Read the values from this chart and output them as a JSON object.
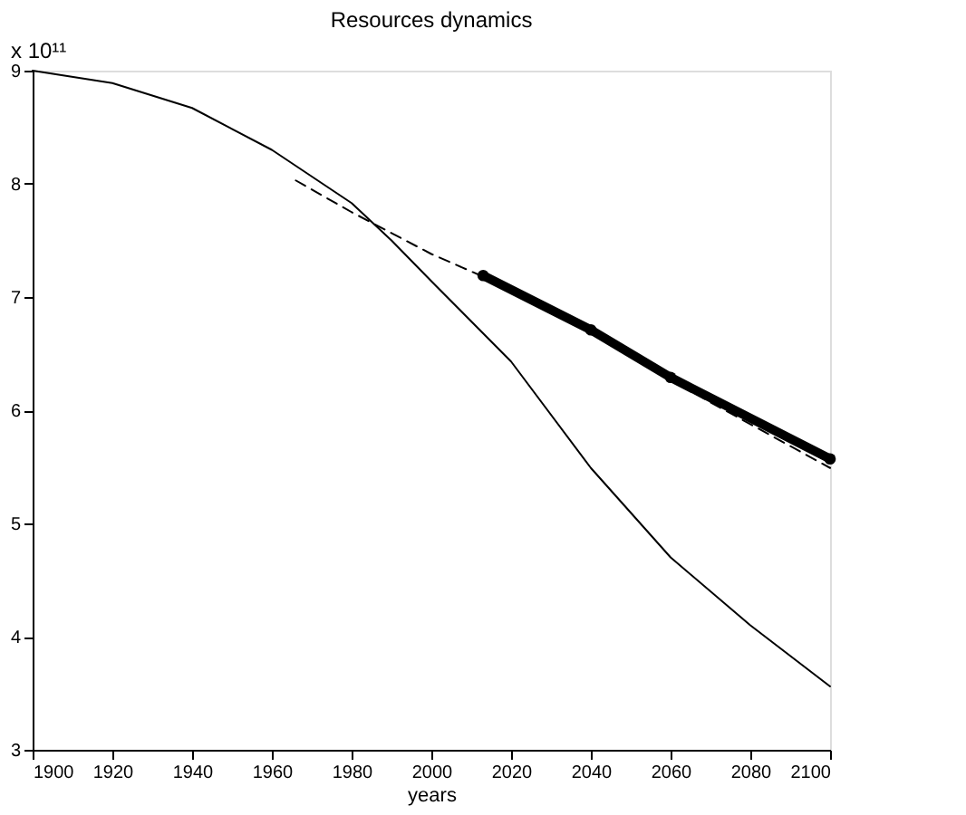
{
  "chart_data": {
    "type": "line",
    "title": "Resources dynamics",
    "xlabel": "years",
    "annotations": [
      "x 10¹¹"
    ],
    "xlim": [
      1900,
      2100
    ],
    "xticks": [
      1900,
      1920,
      1940,
      1960,
      1980,
      2000,
      2020,
      2040,
      2060,
      2080,
      2100
    ],
    "ylim": [
      3,
      9
    ],
    "yticks": [
      3,
      4,
      5,
      6,
      7,
      8,
      9
    ],
    "grid": false,
    "marker": "none",
    "series": [
      {
        "color": "#000000",
        "line_style": "solid",
        "x": [
          1900,
          1920,
          1940,
          1960,
          1980,
          1990,
          2000,
          2020,
          2040,
          2060,
          2080,
          2100
        ],
        "values": [
          9.0,
          8.89,
          8.67,
          8.3,
          7.83,
          7.5,
          7.14,
          6.43,
          5.49,
          4.7,
          4.1,
          3.56
        ]
      },
      {
        "color": "#000000",
        "line_style": "dashed",
        "x": [
          1966,
          1980,
          2000,
          2013,
          2040,
          2070,
          2100
        ],
        "values": [
          8.03,
          7.75,
          7.38,
          7.18,
          6.68,
          6.07,
          5.49
        ]
      },
      {
        "color": "#000000",
        "line_style": "solid",
        "marker": "circle",
        "x": [
          2013,
          2040,
          2060,
          2100
        ],
        "values": [
          7.19,
          6.71,
          6.29,
          5.57
        ]
      }
    ]
  }
}
